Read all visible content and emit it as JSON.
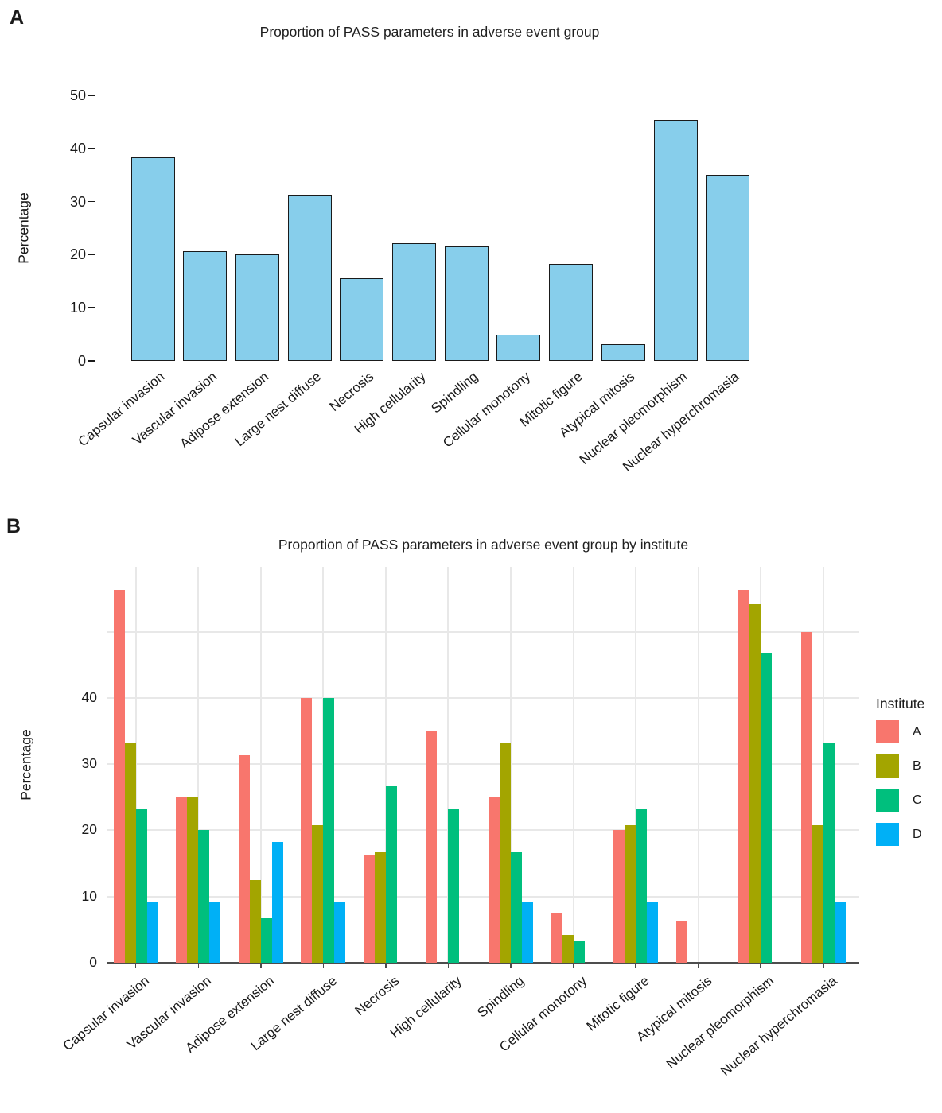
{
  "panels": {
    "a": {
      "label": "A"
    },
    "b": {
      "label": "B"
    }
  },
  "chart_data": [
    {
      "id": "panel_a",
      "type": "bar",
      "title": "Proportion of PASS parameters in adverse event group",
      "xlabel": "",
      "ylabel": "Percentage",
      "ylim": [
        0,
        50
      ],
      "yticks": [
        0,
        10,
        20,
        30,
        40,
        50
      ],
      "grid": false,
      "bar_color": "#87CEEB",
      "bar_border_color": "#1a1a1a",
      "categories": [
        "Capsular invasion",
        "Vascular invasion",
        "Adipose extension",
        "Large nest diffuse",
        "Necrosis",
        "High cellularity",
        "Spindling",
        "Cellular monotony",
        "Mitotic figure",
        "Atypical mitosis",
        "Nuclear pleomorphism",
        "Nuclear hyperchromasia"
      ],
      "values": [
        38.3,
        20.7,
        20.1,
        31.3,
        15.6,
        22.1,
        21.5,
        4.9,
        18.3,
        3.1,
        45.3,
        35.1
      ]
    },
    {
      "id": "panel_b",
      "type": "grouped_bar",
      "title": "Proportion of PASS parameters in adverse event group by institute",
      "xlabel": "",
      "ylabel": "Percentage",
      "ylim": [
        0,
        59.8
      ],
      "yticks": [
        0,
        10,
        20,
        30,
        40
      ],
      "gridline_values": [
        10,
        20,
        30,
        40,
        50
      ],
      "grid": true,
      "legend_title": "Institute",
      "legend_position": "right",
      "categories": [
        "Capsular invasion",
        "Vascular invasion",
        "Adipose extension",
        "Large nest diffuse",
        "Necrosis",
        "High cellularity",
        "Spindling",
        "Cellular monotony",
        "Mitotic figure",
        "Atypical mitosis",
        "Nuclear pleomorphism",
        "Nuclear hyperchromasia"
      ],
      "series": [
        {
          "name": "A",
          "color": "#F8766D",
          "values": [
            56.3,
            25.0,
            31.3,
            40.0,
            16.3,
            35.0,
            25.0,
            7.5,
            20.0,
            6.3,
            56.3,
            50.0
          ]
        },
        {
          "name": "B",
          "color": "#A3A500",
          "values": [
            33.3,
            25.0,
            12.5,
            20.8,
            16.7,
            0,
            33.3,
            4.2,
            20.8,
            0,
            54.2,
            20.8
          ]
        },
        {
          "name": "C",
          "color": "#00BF7D",
          "values": [
            23.3,
            20.0,
            6.7,
            40.0,
            26.7,
            23.3,
            16.7,
            3.3,
            23.3,
            0,
            46.7,
            33.3
          ]
        },
        {
          "name": "D",
          "color": "#00B0F6",
          "values": [
            9.3,
            9.3,
            18.3,
            9.3,
            0,
            0,
            9.3,
            0,
            9.3,
            0,
            0,
            9.3
          ]
        }
      ]
    }
  ]
}
